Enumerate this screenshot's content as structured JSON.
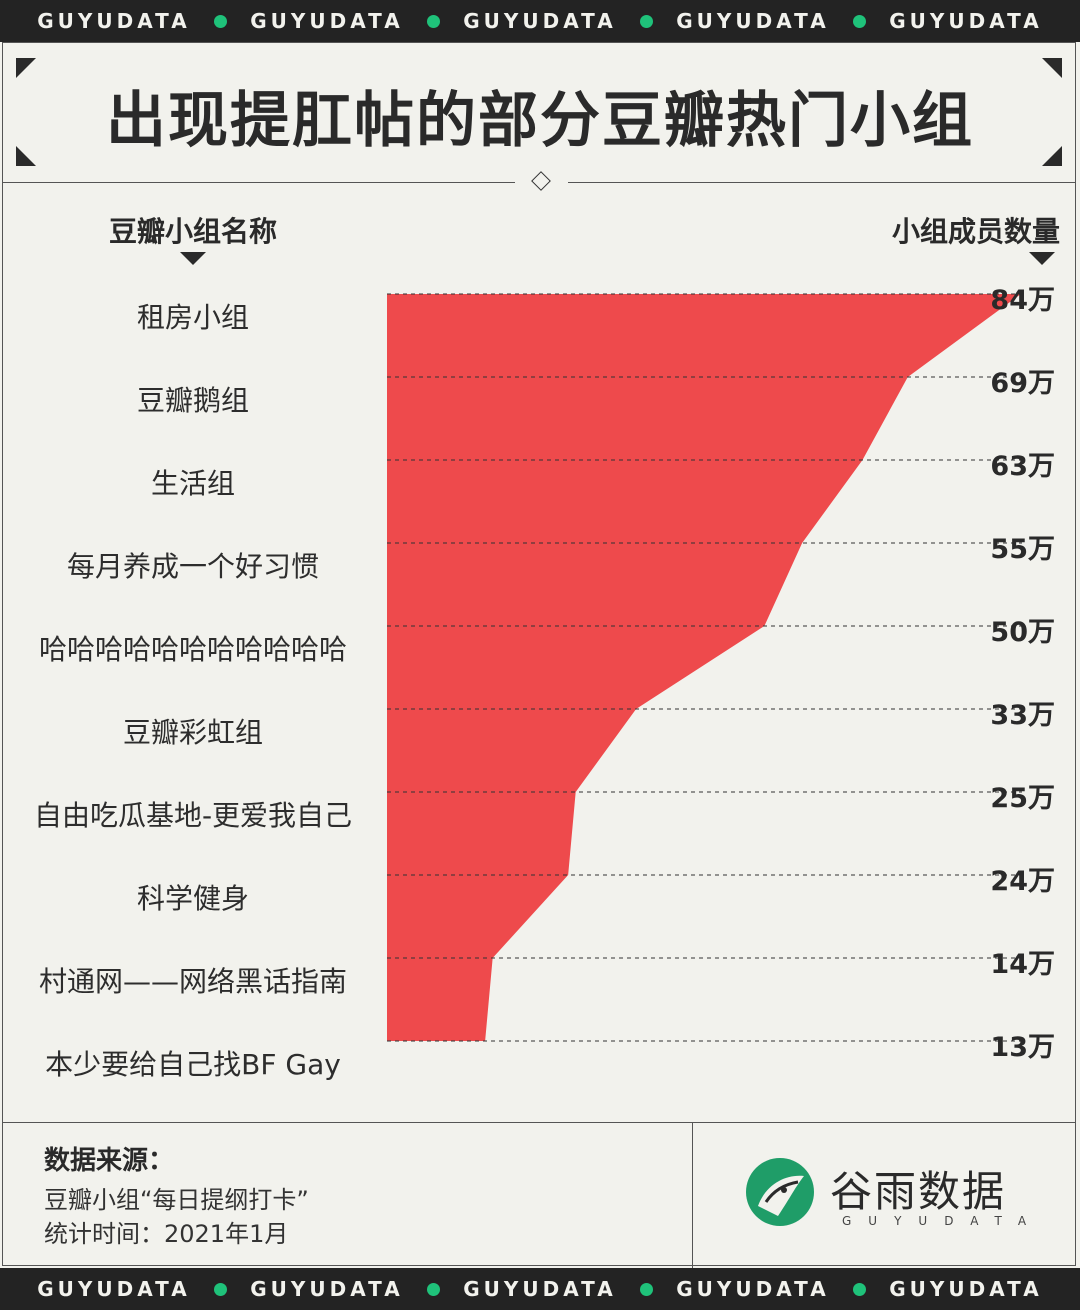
{
  "band": {
    "word": "GUYUDATA"
  },
  "title": "出现提肛帖的部分豆瓣热门小组",
  "headers": {
    "left": "豆瓣小组名称",
    "right": "小组成员数量"
  },
  "colors": {
    "area": "#ee4a4c",
    "background": "#f2f2ed",
    "band": "#232323",
    "dot": "#1fc27a",
    "logo": "#1f9d68"
  },
  "chart_data": {
    "type": "area",
    "categories": [
      "租房小组",
      "豆瓣鹅组",
      "生活组",
      "每月养成一个好习惯",
      "哈哈哈哈哈哈哈哈哈哈哈",
      "豆瓣彩虹组",
      "自由吃瓜基地-更爱我自己",
      "科学健身",
      "村通网——网络黑话指南",
      "本少要给自己找BF Gay"
    ],
    "values": [
      84,
      69,
      63,
      55,
      50,
      33,
      25,
      24,
      14,
      13
    ],
    "value_labels": [
      "84万",
      "69万",
      "63万",
      "55万",
      "50万",
      "33万",
      "25万",
      "24万",
      "14万",
      "13万"
    ],
    "unit": "万",
    "xlim": [
      0,
      84
    ],
    "orientation": "horizontal",
    "grid": "dashed"
  },
  "source": {
    "title": "数据来源：",
    "line1": "豆瓣小组“每日提纲打卡”",
    "line2": "统计时间：2021年1月"
  },
  "brand": {
    "cn": "谷雨数据",
    "en": "GUYUDATA"
  }
}
